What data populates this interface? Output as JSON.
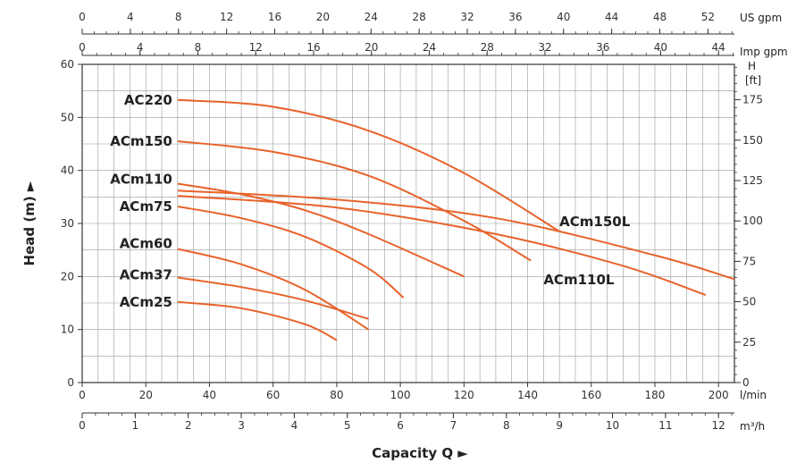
{
  "chart_data": {
    "type": "line",
    "xlabel": "Capacity Q",
    "ylabel": "Head (m)",
    "axes": {
      "x_lmin": {
        "unit": "l/min",
        "range": [
          0,
          205
        ],
        "ticks": [
          "0",
          "20",
          "40",
          "60",
          "80",
          "100",
          "120",
          "140",
          "160",
          "180",
          "200"
        ]
      },
      "x_m3h": {
        "unit": "m³/h",
        "range": [
          0,
          12.3
        ],
        "ticks": [
          "0",
          "1",
          "2",
          "3",
          "4",
          "5",
          "6",
          "7",
          "8",
          "9",
          "10",
          "11",
          "12"
        ]
      },
      "x_usgpm": {
        "unit": "US gpm",
        "range": [
          0,
          54.2
        ],
        "ticks": [
          "0",
          "4",
          "8",
          "12",
          "16",
          "20",
          "24",
          "28",
          "32",
          "36",
          "40",
          "44",
          "48",
          "52"
        ]
      },
      "x_impgpm": {
        "unit": "Imp gpm",
        "range": [
          0,
          45.1
        ],
        "ticks": [
          "0",
          "4",
          "8",
          "12",
          "16",
          "20",
          "24",
          "28",
          "32",
          "36",
          "40",
          "44"
        ]
      },
      "y_m": {
        "unit": "m",
        "range": [
          0,
          60
        ],
        "ticks": [
          "0",
          "10",
          "20",
          "30",
          "40",
          "50",
          "60"
        ]
      },
      "y_ft": {
        "unit": "H [ft]",
        "range": [
          0,
          196.9
        ],
        "ticks": [
          "0",
          "25",
          "50",
          "75",
          "100",
          "125",
          "150",
          "175"
        ]
      }
    },
    "grid": true,
    "series": [
      {
        "name": "AC220",
        "x": [
          30,
          60,
          90,
          120,
          150
        ],
        "y": [
          53.3,
          52.0,
          47.5,
          39.5,
          28.5
        ]
      },
      {
        "name": "ACm150",
        "x": [
          30,
          60,
          90,
          120,
          141
        ],
        "y": [
          45.5,
          43.5,
          39.0,
          30.5,
          23.0
        ]
      },
      {
        "name": "ACm110",
        "x": [
          30,
          50,
          70,
          90,
          120
        ],
        "y": [
          37.5,
          35.5,
          32.5,
          28.0,
          20.0
        ]
      },
      {
        "name": "ACm75",
        "x": [
          30,
          50,
          70,
          90,
          101
        ],
        "y": [
          33.2,
          31.0,
          27.5,
          21.5,
          16.0
        ]
      },
      {
        "name": "ACm60",
        "x": [
          30,
          50,
          70,
          90
        ],
        "y": [
          25.2,
          22.3,
          17.5,
          10.0
        ]
      },
      {
        "name": "ACm37",
        "x": [
          30,
          50,
          70,
          90
        ],
        "y": [
          19.8,
          18.0,
          15.5,
          12.0
        ]
      },
      {
        "name": "ACm25",
        "x": [
          30,
          50,
          70,
          80
        ],
        "y": [
          15.2,
          14.0,
          11.0,
          8.0
        ]
      },
      {
        "name": "ACm150L",
        "x": [
          30,
          80,
          130,
          180,
          205
        ],
        "y": [
          36.2,
          34.5,
          31.0,
          24.0,
          19.5
        ]
      },
      {
        "name": "ACm110L",
        "x": [
          30,
          80,
          130,
          170,
          196
        ],
        "y": [
          35.2,
          33.0,
          28.0,
          22.0,
          16.5
        ]
      }
    ],
    "curve_color": "#e8622a",
    "grid_color": "#9a9a9a"
  }
}
